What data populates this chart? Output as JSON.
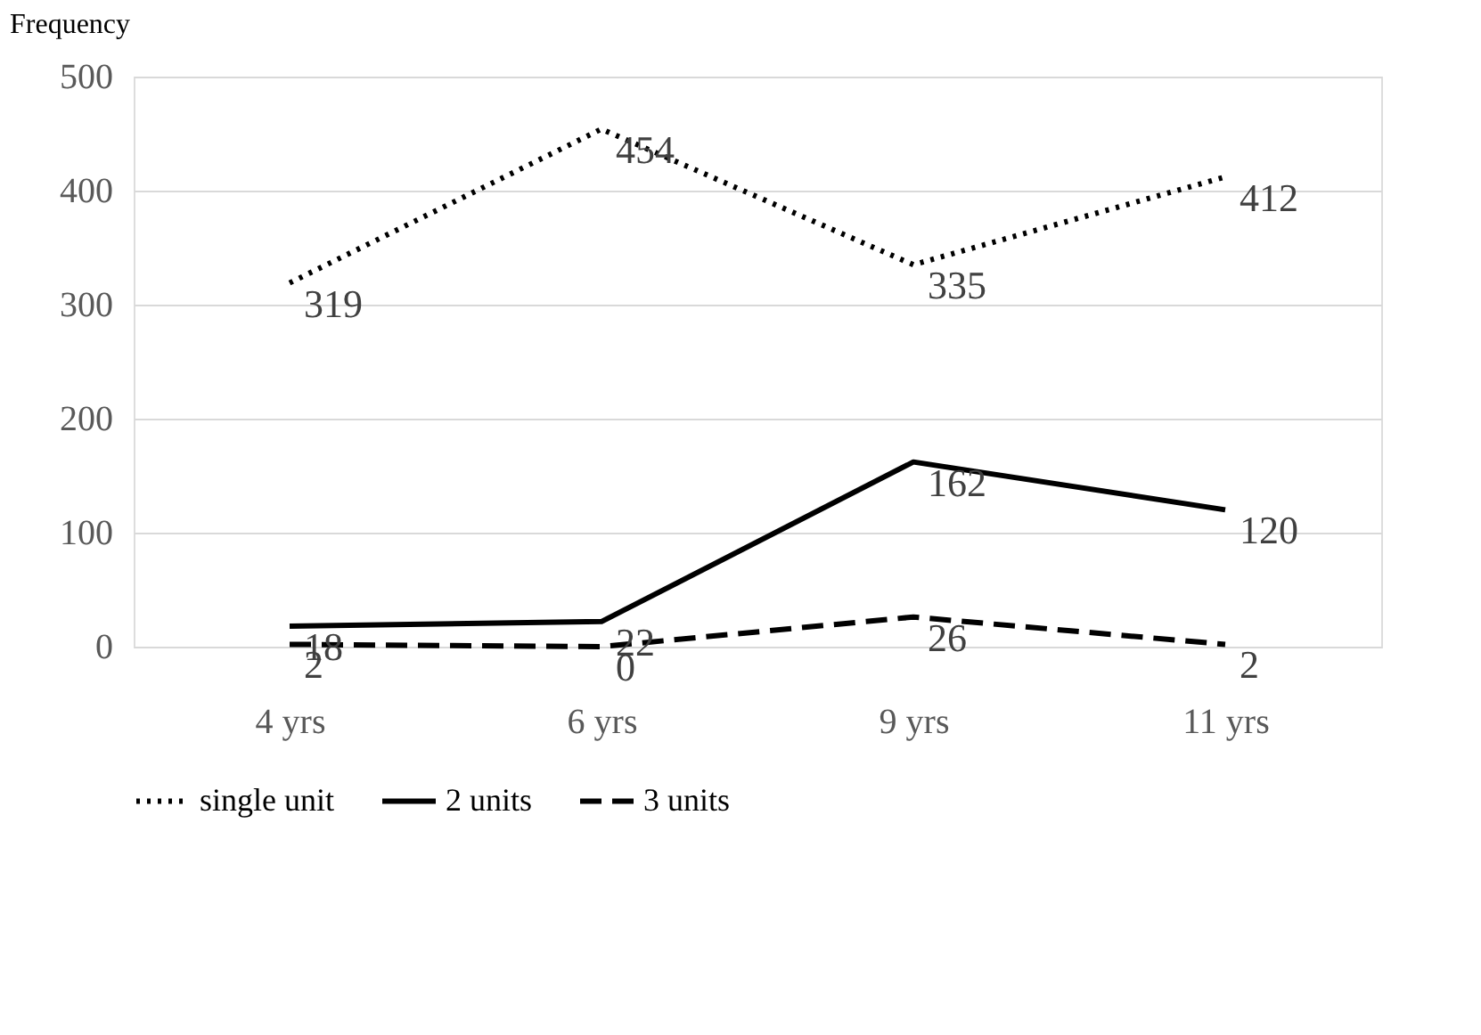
{
  "chart_data": {
    "type": "line",
    "ylabel": "Frequency",
    "categories": [
      "4 yrs",
      "6 yrs",
      "9 yrs",
      "11 yrs"
    ],
    "series": [
      {
        "name": "single unit",
        "color": "#000000",
        "line_style": "dotted",
        "values": [
          319,
          454,
          335,
          412
        ]
      },
      {
        "name": "2 units",
        "color": "#000000",
        "line_style": "solid",
        "values": [
          18,
          22,
          162,
          120
        ]
      },
      {
        "name": "3 units",
        "color": "#000000",
        "line_style": "dashed",
        "values": [
          2,
          0,
          26,
          2
        ]
      }
    ],
    "ylim": [
      0,
      500
    ],
    "yticks": [
      0,
      100,
      200,
      300,
      400,
      500
    ],
    "grid": "y",
    "legend": "bottom",
    "data_labels": true,
    "marker": "none"
  }
}
